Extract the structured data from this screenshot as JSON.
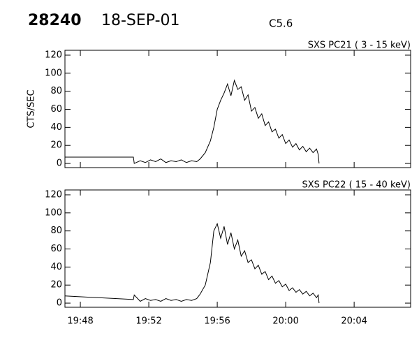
{
  "header": {
    "id": "28240",
    "date": "18-SEP-01",
    "class": "C5.6"
  },
  "chart_data": [
    {
      "type": "line",
      "title": "SXS PC21  (  3 - 15 keV)",
      "y_label": "CTS/SEC",
      "xlim": [
        1187.1,
        1207.3
      ],
      "ylim": [
        -4.6,
        125.4
      ],
      "yticks": [
        0,
        20,
        40,
        60,
        80,
        100,
        120
      ],
      "series": [
        {
          "color": "#000000",
          "x": [
            1187.1,
            1191.1,
            1191.15,
            1191.5,
            1191.8,
            1192.1,
            1192.4,
            1192.7,
            1193.0,
            1193.3,
            1193.6,
            1193.9,
            1194.2,
            1194.5,
            1194.8,
            1195.0,
            1195.3,
            1195.6,
            1195.8,
            1196.0,
            1196.2,
            1196.4,
            1196.6,
            1196.8,
            1197.0,
            1197.2,
            1197.4,
            1197.6,
            1197.8,
            1198.0,
            1198.2,
            1198.4,
            1198.6,
            1198.8,
            1199.0,
            1199.2,
            1199.4,
            1199.6,
            1199.8,
            1200.0,
            1200.2,
            1200.4,
            1200.6,
            1200.8,
            1201.0,
            1201.2,
            1201.4,
            1201.6,
            1201.8,
            1201.9,
            1201.95
          ],
          "values": [
            7,
            7,
            0,
            3,
            1,
            4,
            2,
            5,
            1,
            3,
            2,
            4,
            1,
            3,
            2,
            5,
            12,
            25,
            40,
            60,
            70,
            78,
            88,
            75,
            92,
            82,
            85,
            70,
            76,
            58,
            62,
            50,
            55,
            42,
            46,
            35,
            38,
            28,
            32,
            22,
            26,
            18,
            22,
            15,
            19,
            13,
            17,
            12,
            16,
            10,
            0
          ]
        }
      ]
    },
    {
      "type": "line",
      "title": "SXS PC22  ( 15 - 40 keV)",
      "xlim": [
        1187.1,
        1207.3
      ],
      "ylim": [
        -4.6,
        125.4
      ],
      "yticks": [
        0,
        20,
        40,
        60,
        80,
        100,
        120
      ],
      "xticks": [
        {
          "value": 1188,
          "label": "19:48"
        },
        {
          "value": 1192,
          "label": "19:52"
        },
        {
          "value": 1196,
          "label": "19:56"
        },
        {
          "value": 1200,
          "label": "20:00"
        },
        {
          "value": 1204,
          "label": "20:04"
        }
      ],
      "series": [
        {
          "color": "#000000",
          "x": [
            1187.1,
            1191.1,
            1191.15,
            1191.5,
            1191.8,
            1192.1,
            1192.4,
            1192.7,
            1193.0,
            1193.3,
            1193.6,
            1193.9,
            1194.2,
            1194.5,
            1194.8,
            1195.0,
            1195.3,
            1195.6,
            1195.8,
            1196.0,
            1196.2,
            1196.4,
            1196.6,
            1196.8,
            1197.0,
            1197.2,
            1197.4,
            1197.6,
            1197.8,
            1198.0,
            1198.2,
            1198.4,
            1198.6,
            1198.8,
            1199.0,
            1199.2,
            1199.4,
            1199.6,
            1199.8,
            1200.0,
            1200.2,
            1200.4,
            1200.6,
            1200.8,
            1201.0,
            1201.2,
            1201.4,
            1201.6,
            1201.8,
            1201.9,
            1201.95
          ],
          "values": [
            8,
            4,
            9,
            2,
            5,
            3,
            4,
            2,
            5,
            3,
            4,
            2,
            4,
            3,
            5,
            10,
            20,
            45,
            80,
            88,
            72,
            85,
            65,
            78,
            60,
            70,
            52,
            58,
            45,
            48,
            38,
            42,
            32,
            35,
            26,
            30,
            22,
            25,
            18,
            21,
            14,
            17,
            12,
            15,
            10,
            13,
            8,
            11,
            6,
            9,
            0
          ]
        }
      ]
    }
  ]
}
